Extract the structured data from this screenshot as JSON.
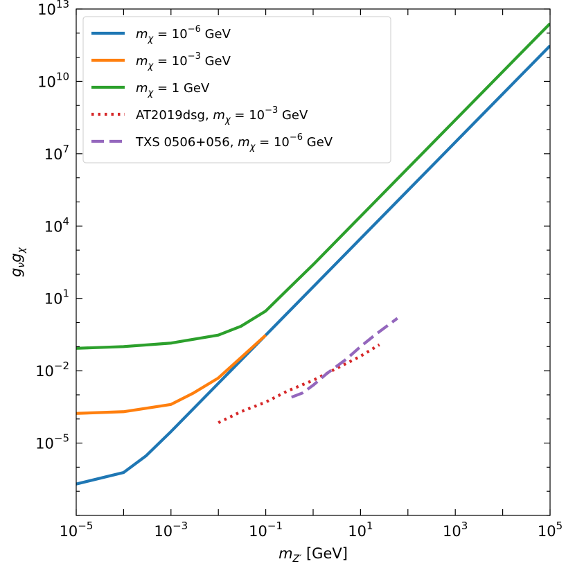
{
  "chart_data": {
    "type": "line",
    "title": "",
    "xscale": "log",
    "yscale": "log",
    "xlim": [
      1e-05,
      100000.0
    ],
    "ylim": [
      1e-08,
      10000000000000.0
    ],
    "grid": false,
    "legend_position": "top-left",
    "xlabel": {
      "symbol": "m",
      "sub": "Z′",
      "unit": "[GeV]"
    },
    "ylabel": {
      "sym1": "g",
      "sub1": "ν",
      "sym2": "g",
      "sub2": "χ"
    },
    "x_ticks": [
      {
        "value": 1e-05,
        "base": "10",
        "exp": "−5"
      },
      {
        "value": 0.001,
        "base": "10",
        "exp": "−3"
      },
      {
        "value": 0.1,
        "base": "10",
        "exp": "−1"
      },
      {
        "value": 10,
        "base": "10",
        "exp": "1"
      },
      {
        "value": 1000,
        "base": "10",
        "exp": "3"
      },
      {
        "value": 100000,
        "base": "10",
        "exp": "5"
      }
    ],
    "y_ticks": [
      {
        "value": 1e-05,
        "base": "10",
        "exp": "−5"
      },
      {
        "value": 0.01,
        "base": "10",
        "exp": "−2"
      },
      {
        "value": 10,
        "base": "10",
        "exp": "1"
      },
      {
        "value": 10000.0,
        "base": "10",
        "exp": "4"
      },
      {
        "value": 10000000.0,
        "base": "10",
        "exp": "7"
      },
      {
        "value": 10000000000.0,
        "base": "10",
        "exp": "10"
      },
      {
        "value": 10000000000000.0,
        "base": "10",
        "exp": "13"
      }
    ],
    "series": [
      {
        "name": "m_χ = 10^−6 GeV",
        "legend": {
          "prefix": "",
          "exp": "−6"
        },
        "color": "#1f77b4",
        "style": "solid",
        "x": [
          1e-05,
          0.0001,
          0.0003,
          0.001,
          0.01,
          0.1,
          1,
          10,
          100,
          1000,
          10000.0,
          100000.0
        ],
        "y": [
          2e-07,
          6e-07,
          3e-06,
          3e-05,
          0.003,
          0.3,
          30,
          3000,
          300000.0,
          30000000.0,
          3000000000.0,
          300000000000.0
        ]
      },
      {
        "name": "m_χ = 10^−3 GeV",
        "legend": {
          "prefix": "",
          "exp": "−3"
        },
        "color": "#ff7f0e",
        "style": "solid",
        "x": [
          1e-05,
          0.0001,
          0.001,
          0.003,
          0.01,
          0.03,
          0.1
        ],
        "y": [
          0.00017,
          0.0002,
          0.0004,
          0.0012,
          0.005,
          0.035,
          0.3
        ]
      },
      {
        "name": "m_χ = 1 GeV",
        "legend": {
          "prefix": "",
          "exp": ""
        },
        "color": "#2ca02c",
        "style": "solid",
        "x": [
          1e-05,
          0.0001,
          0.001,
          0.01,
          0.03,
          0.1,
          0.3,
          1,
          10,
          100,
          1000,
          10000.0,
          100000.0
        ],
        "y": [
          0.085,
          0.1,
          0.14,
          0.3,
          0.7,
          3,
          25,
          250,
          25000,
          2500000.0,
          250000000.0,
          25000000000.0,
          2500000000000.0
        ]
      },
      {
        "name": "AT2019dsg, m_χ = 10^−3 GeV",
        "legend": {
          "prefix": "AT2019dsg, ",
          "exp": "−3"
        },
        "color": "#d62728",
        "style": "dotted",
        "x": [
          0.01,
          0.03,
          0.1,
          0.3,
          1,
          3,
          10,
          25
        ],
        "y": [
          7e-05,
          0.0002,
          0.0005,
          0.0015,
          0.004,
          0.012,
          0.04,
          0.12
        ]
      },
      {
        "name": "TXS 0506+056, m_χ = 10^−6 GeV",
        "legend": {
          "prefix": "TXS 0506+056, ",
          "exp": "−6"
        },
        "color": "#9467bd",
        "style": "dashed",
        "x": [
          0.35,
          0.6,
          1,
          2,
          5,
          10,
          20,
          60
        ],
        "y": [
          0.0008,
          0.0012,
          0.0025,
          0.008,
          0.03,
          0.1,
          0.3,
          1.5
        ]
      }
    ],
    "legend_texts": {
      "m_symbol": "m",
      "chi": "χ",
      "eq": " = ",
      "ten": "10",
      "one": "1",
      "gev": " GeV"
    }
  }
}
